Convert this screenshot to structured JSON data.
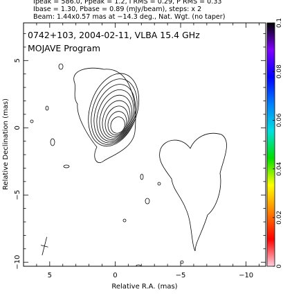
{
  "header": {
    "line1": "Ipeak = 586.0, Ppeak = 1.2, I RMS = 0.29, P RMS = 0.33",
    "line2": "Ibase = 1.30, Pbase = 0.89 (mJy/beam), steps: x 2",
    "line3": "Beam: 1.44x0.57 mas at −14.3 deg., Nat. Wgt. (no taper)"
  },
  "chart_data": {
    "type": "contour",
    "title": "0742+103, 2004-02-11, VLBA 15.4 GHz",
    "subtitle": "MOJAVE Program",
    "xlabel": "Relative R.A. (mas)",
    "ylabel": "Relative Declination (mas)",
    "xlim": [
      7,
      -11.5
    ],
    "ylim": [
      -10.3,
      7.8
    ],
    "x_ticks": [
      {
        "value": 5,
        "label": "5"
      },
      {
        "value": 0,
        "label": "0"
      },
      {
        "value": -5,
        "label": "−5"
      },
      {
        "value": -10,
        "label": "−10"
      }
    ],
    "y_ticks": [
      {
        "value": 5,
        "label": "5"
      },
      {
        "value": 0,
        "label": "0"
      },
      {
        "value": -5,
        "label": "−5"
      },
      {
        "value": -10,
        "label": "−10"
      }
    ],
    "contour_levels": {
      "base": 1.3,
      "step_factor": 2,
      "units": "mJy/beam",
      "count": 9
    },
    "core": {
      "x": -0.2,
      "y": 0.2
    },
    "beam": {
      "major": 1.44,
      "minor": 0.57,
      "pa": -14.3,
      "x": 5.4,
      "y": -8.8
    },
    "colorbar": {
      "ticks": [
        {
          "value": 0,
          "label": "0"
        },
        {
          "value": 0.02,
          "label": "0.02"
        },
        {
          "value": 0.04,
          "label": "0.04"
        },
        {
          "value": 0.06,
          "label": "0.06"
        },
        {
          "value": 0.08,
          "label": "0.08"
        },
        {
          "value": 0.1,
          "label": "0.1"
        }
      ],
      "range": [
        0,
        0.1
      ],
      "colors": [
        "#ffd0e0",
        "#ff0000",
        "#ff8000",
        "#ffff00",
        "#00e000",
        "#00e0e0",
        "#0080ff",
        "#0000ff",
        "#8000ff",
        "#000000"
      ]
    }
  }
}
